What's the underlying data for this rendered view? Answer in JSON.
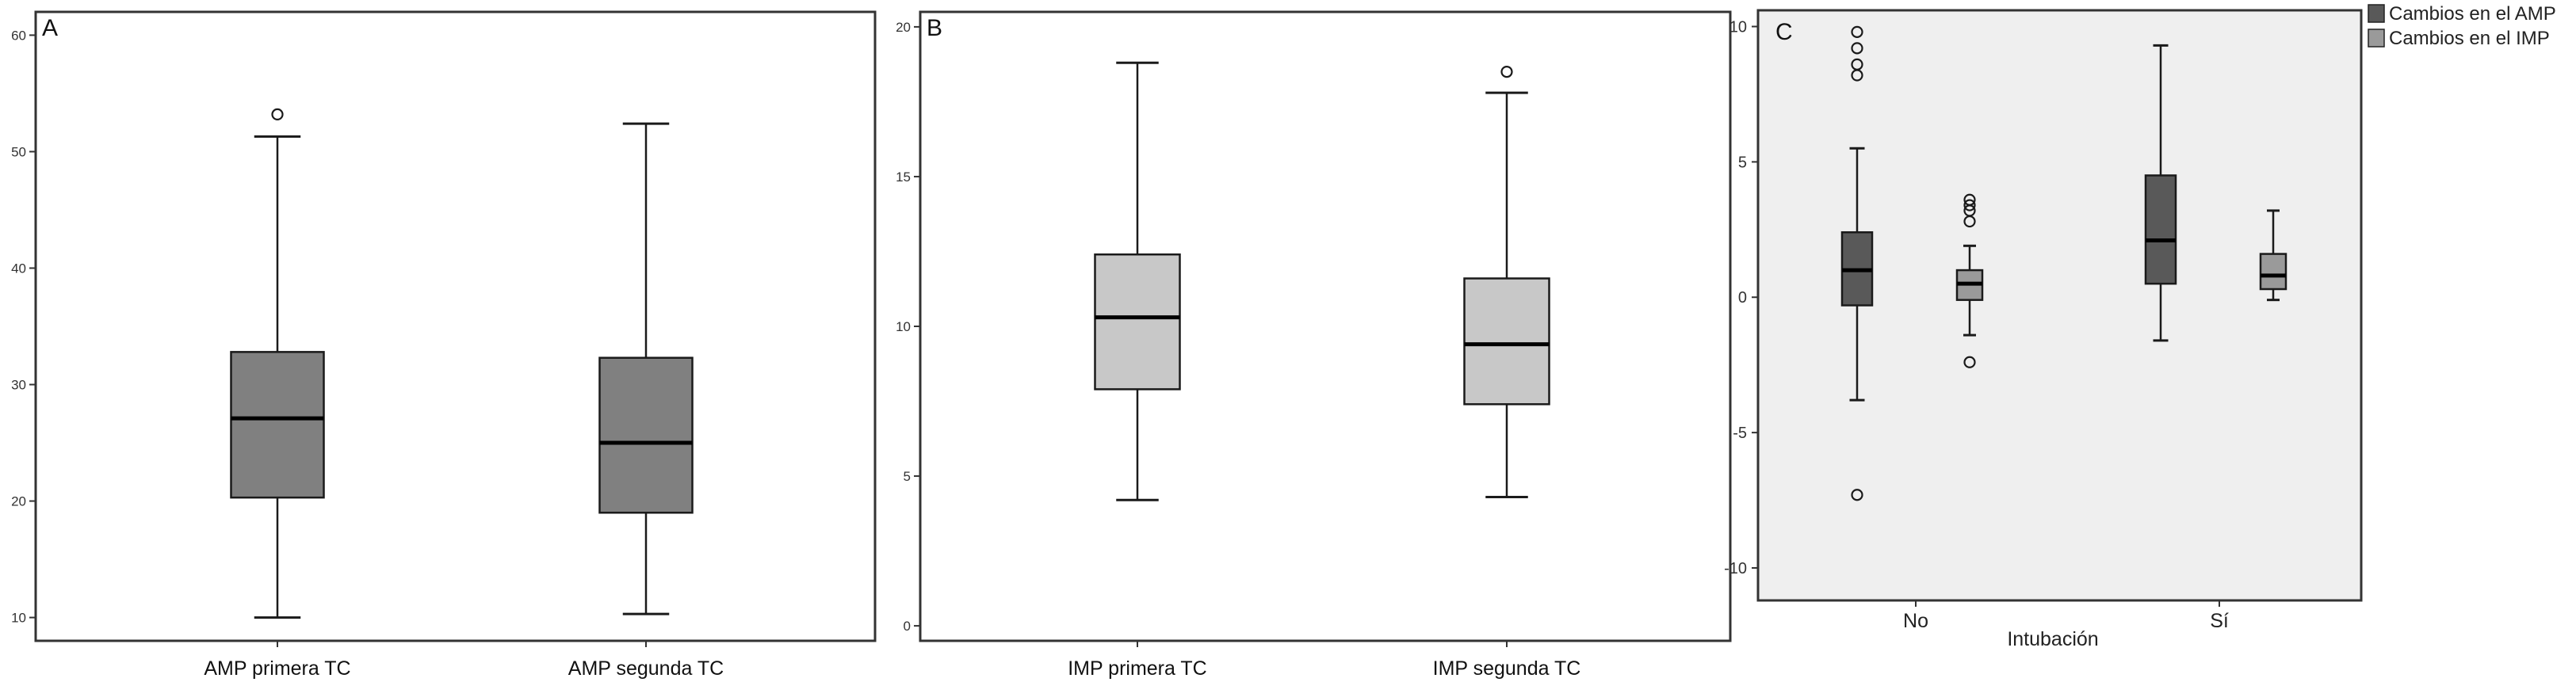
{
  "colors": {
    "amp_box": "#808080",
    "imp_box": "#c8c8c8",
    "amp_dark_box": "#595959",
    "imp_mid_box": "#9a9a9a",
    "panel_c_bg": "#efefef",
    "stroke": "#1a1a1a"
  },
  "chart_data": [
    {
      "type": "box",
      "panel_label": "A",
      "categories": [
        "AMP primera TC",
        "AMP segunda TC"
      ],
      "yticks": [
        10,
        20,
        30,
        40,
        50,
        60
      ],
      "ylim": [
        8,
        62
      ],
      "boxes": [
        {
          "whisker_low": 10,
          "q1": 20.3,
          "median": 27.1,
          "q3": 32.8,
          "whisker_high": 51.3,
          "outliers": [
            53.2
          ]
        },
        {
          "whisker_low": 10.3,
          "q1": 19,
          "median": 25,
          "q3": 32.3,
          "whisker_high": 52.4,
          "outliers": []
        }
      ]
    },
    {
      "type": "box",
      "panel_label": "B",
      "categories": [
        "IMP primera TC",
        "IMP segunda TC"
      ],
      "yticks": [
        0,
        5,
        10,
        15,
        20
      ],
      "ylim": [
        -0.5,
        20.5
      ],
      "boxes": [
        {
          "whisker_low": 4.2,
          "q1": 7.9,
          "median": 10.3,
          "q3": 12.4,
          "whisker_high": 18.8,
          "outliers": []
        },
        {
          "whisker_low": 4.3,
          "q1": 7.4,
          "median": 9.4,
          "q3": 11.6,
          "whisker_high": 17.8,
          "outliers": [
            18.5
          ]
        }
      ]
    },
    {
      "type": "box",
      "panel_label": "C",
      "categories": [
        "No",
        "Sí"
      ],
      "xlabel": "Intubación",
      "yticks": [
        -10,
        -5,
        0,
        5,
        10
      ],
      "ylim": [
        -11.2,
        10.6
      ],
      "legend_position": "top-right",
      "series": [
        {
          "name": "Cambios en el AMP",
          "boxes": [
            {
              "whisker_low": -3.8,
              "q1": -0.3,
              "median": 1.0,
              "q3": 2.4,
              "whisker_high": 5.5,
              "outliers": [
                8.2,
                8.6,
                9.2,
                9.8,
                -7.3
              ]
            },
            {
              "whisker_low": -1.6,
              "q1": 0.5,
              "median": 2.1,
              "q3": 4.5,
              "whisker_high": 9.3,
              "outliers": []
            }
          ]
        },
        {
          "name": "Cambios en el IMP",
          "boxes": [
            {
              "whisker_low": -1.4,
              "q1": -0.1,
              "median": 0.5,
              "q3": 1.0,
              "whisker_high": 1.9,
              "outliers": [
                2.8,
                3.2,
                3.4,
                3.6,
                -2.4
              ]
            },
            {
              "whisker_low": -0.1,
              "q1": 0.3,
              "median": 0.8,
              "q3": 1.6,
              "whisker_high": 3.2,
              "outliers": []
            }
          ]
        }
      ]
    }
  ]
}
